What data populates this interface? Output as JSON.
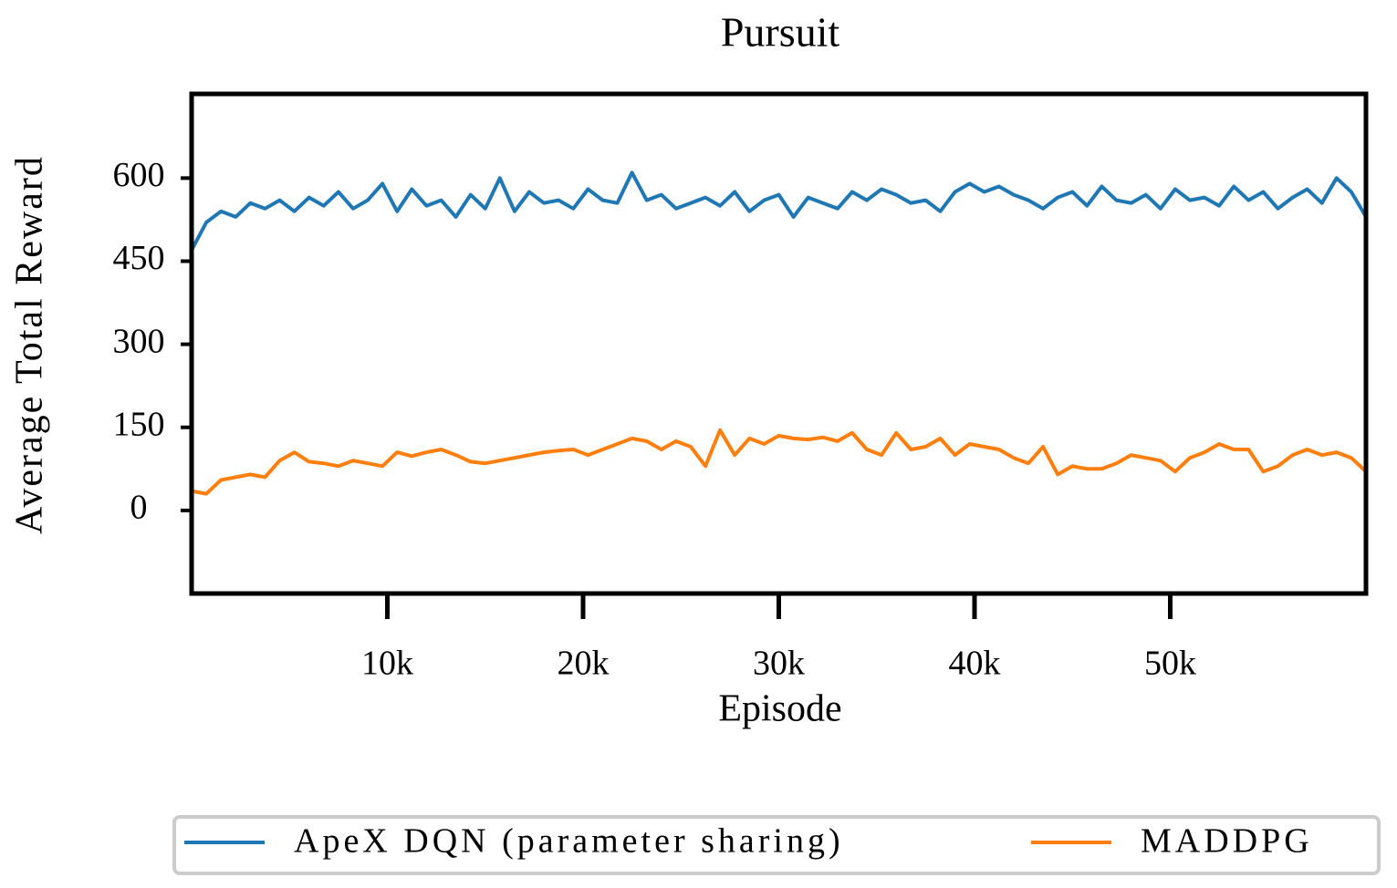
{
  "chart_data": {
    "type": "line",
    "title": "Pursuit",
    "xlabel": "Episode",
    "ylabel": "Average Total Reward",
    "x": [
      0,
      750,
      1500,
      2250,
      3000,
      3750,
      4500,
      5250,
      6000,
      6750,
      7500,
      8250,
      9000,
      9750,
      10500,
      11250,
      12000,
      12750,
      13500,
      14250,
      15000,
      15750,
      16500,
      17250,
      18000,
      18750,
      19500,
      20250,
      21000,
      21750,
      22500,
      23250,
      24000,
      24750,
      25500,
      26250,
      27000,
      27750,
      28500,
      29250,
      30000,
      30750,
      31500,
      32250,
      33000,
      33750,
      34500,
      35250,
      36000,
      36750,
      37500,
      38250,
      39000,
      39750,
      40500,
      41250,
      42000,
      42750,
      43500,
      44250,
      45000,
      45750,
      46500,
      47250,
      48000,
      48750,
      49500,
      50250,
      51000,
      51750,
      52500,
      53250,
      54000,
      54750,
      55500,
      56250,
      57000,
      57750,
      58500,
      59250,
      60000
    ],
    "series": [
      {
        "name": "ApeX DQN (parameter sharing)",
        "color": "#1f77b4",
        "values": [
          470,
          520,
          540,
          530,
          555,
          545,
          560,
          540,
          565,
          550,
          575,
          545,
          560,
          590,
          540,
          580,
          550,
          560,
          530,
          570,
          545,
          600,
          540,
          575,
          555,
          560,
          545,
          580,
          560,
          555,
          610,
          560,
          570,
          545,
          555,
          565,
          550,
          575,
          540,
          560,
          570,
          530,
          565,
          555,
          545,
          575,
          560,
          580,
          570,
          555,
          560,
          540,
          575,
          590,
          575,
          585,
          570,
          560,
          545,
          565,
          575,
          550,
          585,
          560,
          555,
          570,
          545,
          580,
          560,
          565,
          550,
          585,
          560,
          575,
          545,
          565,
          580,
          555,
          600,
          575,
          530
        ]
      },
      {
        "name": "MADDPG",
        "color": "#ff7f0e",
        "values": [
          35,
          30,
          55,
          60,
          65,
          60,
          90,
          105,
          88,
          85,
          80,
          90,
          85,
          80,
          105,
          98,
          105,
          110,
          100,
          88,
          85,
          90,
          95,
          100,
          105,
          108,
          110,
          100,
          110,
          120,
          130,
          125,
          110,
          125,
          115,
          80,
          145,
          100,
          130,
          120,
          135,
          130,
          128,
          132,
          125,
          140,
          110,
          100,
          140,
          110,
          115,
          130,
          100,
          120,
          115,
          110,
          95,
          85,
          115,
          65,
          80,
          75,
          75,
          85,
          100,
          95,
          90,
          70,
          95,
          105,
          120,
          110,
          110,
          70,
          80,
          100,
          110,
          100,
          105,
          95,
          70
        ]
      }
    ],
    "xlim": [
      0,
      60000
    ],
    "xticks": [
      {
        "value": 10000,
        "label": "10k"
      },
      {
        "value": 20000,
        "label": "20k"
      },
      {
        "value": 30000,
        "label": "30k"
      },
      {
        "value": 40000,
        "label": "40k"
      },
      {
        "value": 50000,
        "label": "50k"
      }
    ],
    "ylim": [
      -150,
      752
    ],
    "yticks": [
      0,
      150,
      300,
      450,
      600
    ],
    "grid": false,
    "legend": "bottom"
  }
}
